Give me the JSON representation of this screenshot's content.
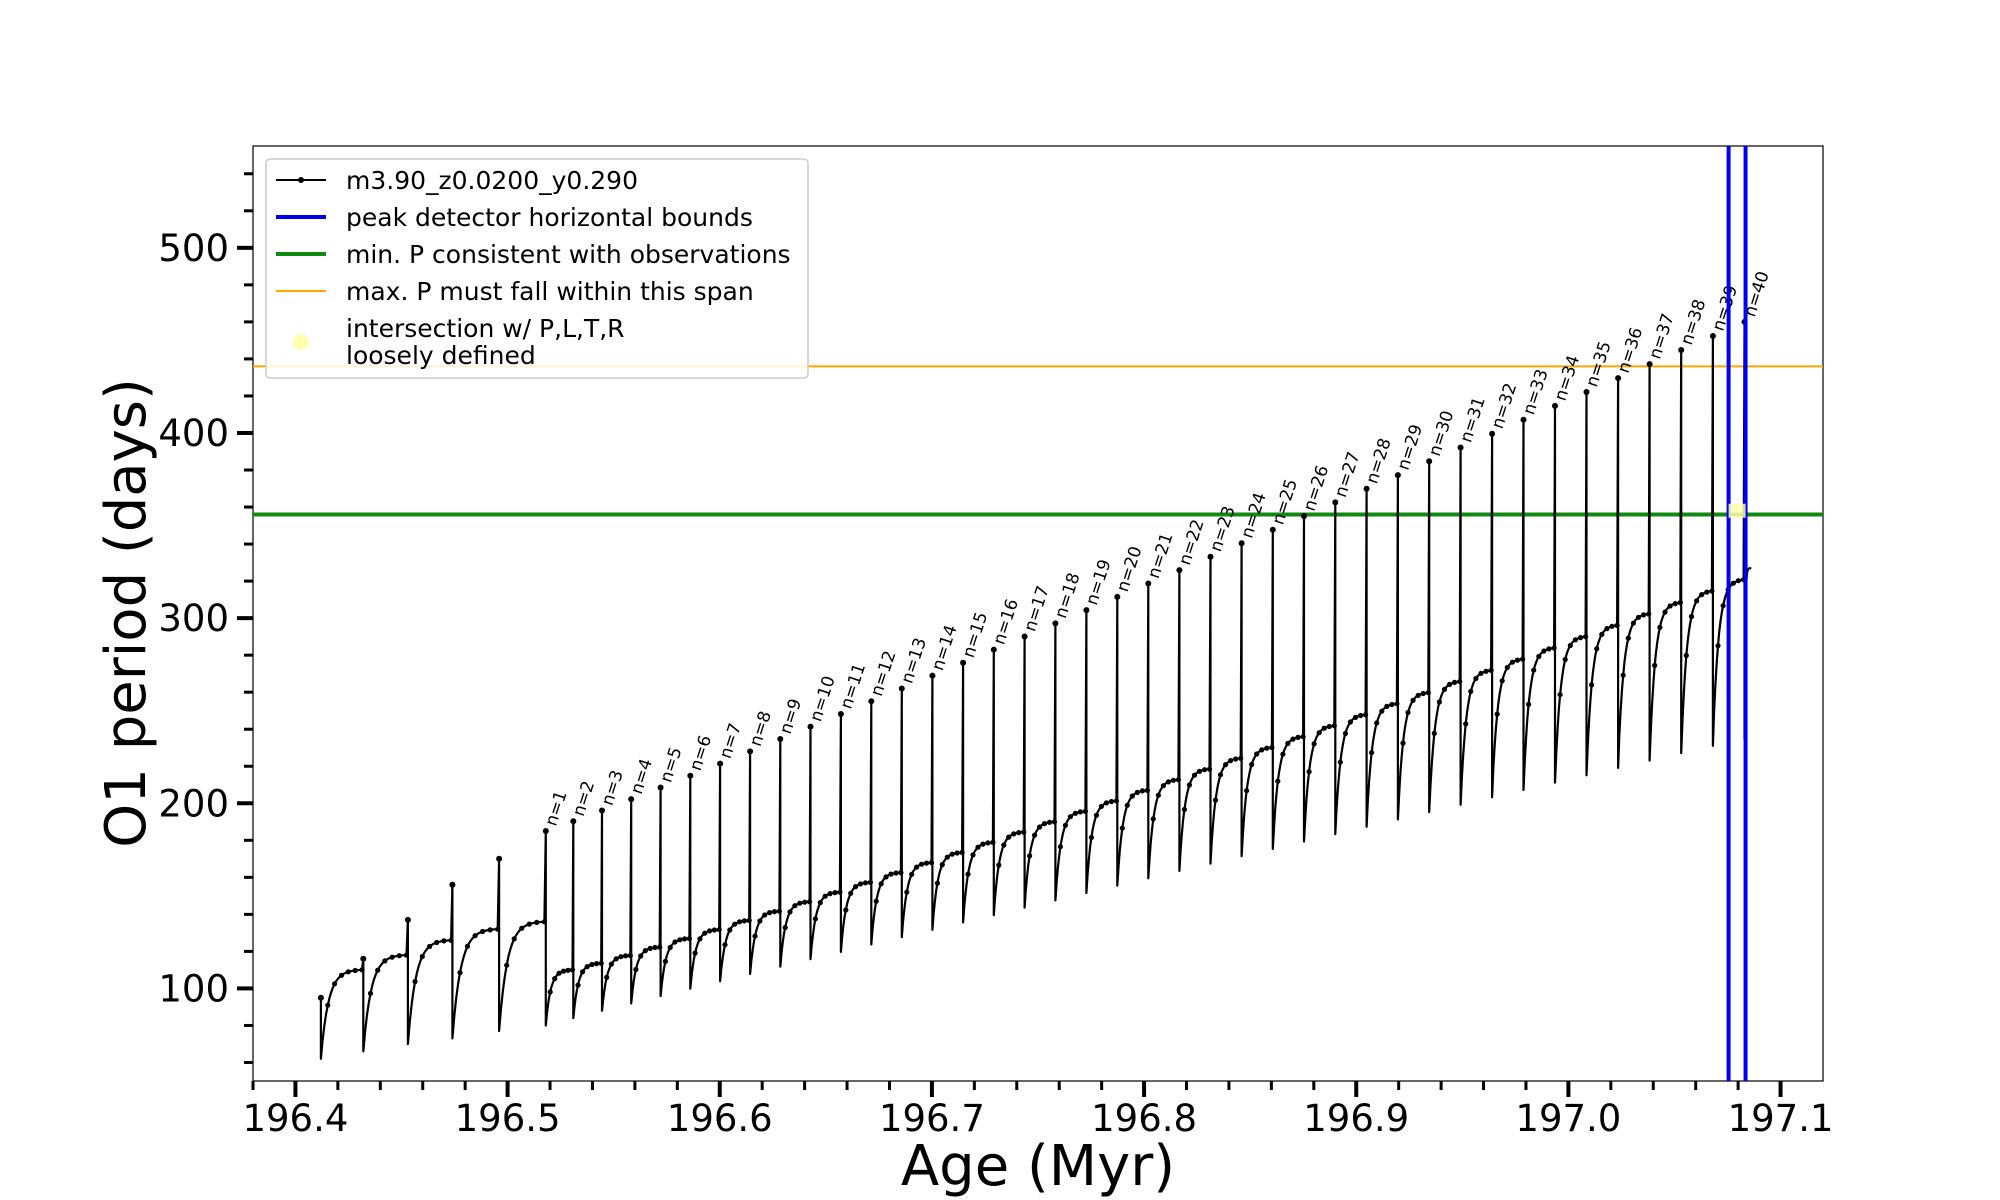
{
  "chart_data": {
    "type": "line",
    "xlabel": "Age (Myr)",
    "ylabel": "O1 period (days)",
    "xlim": [
      196.38,
      197.12
    ],
    "ylim": [
      50,
      555
    ],
    "xticks": [
      "196.4",
      "196.5",
      "196.6",
      "196.7",
      "196.8",
      "196.9",
      "197.0",
      "197.1"
    ],
    "yticks": [
      "100",
      "200",
      "300",
      "400",
      "500"
    ],
    "grid": false,
    "legend_placement": "upper-left",
    "legend": [
      {
        "label": "m3.90_z0.0200_y0.290",
        "kind": "line-marker",
        "color": "#000000"
      },
      {
        "label": "peak detector horizontal bounds",
        "kind": "line",
        "color": "#0000ee"
      },
      {
        "label": "min. P consistent with observations",
        "kind": "line",
        "color": "#118811"
      },
      {
        "label": "max. P must fall within this span",
        "kind": "line",
        "color": "#ffa500"
      },
      {
        "label": "intersection w/ P,L,T,R\nloosely defined",
        "kind": "dot",
        "color": "#ffffb0"
      }
    ],
    "series": [
      {
        "name": "m3.90_z0.0200_y0.290",
        "color": "#000000",
        "pulse_count": 40,
        "pulse_ages_first_last": [
          196.518,
          197.083
        ],
        "pre_pulse_ages": [
          196.412,
          196.432,
          196.453,
          196.474,
          196.496
        ],
        "peak_period_first_last": [
          185,
          460
        ],
        "plateau_period_first_last": [
          110,
          327
        ],
        "min_period_first_last": [
          62,
          235
        ]
      }
    ],
    "peak_labels": [
      "n=1",
      "n=2",
      "n=3",
      "n=4",
      "n=5",
      "n=6",
      "n=7",
      "n=8",
      "n=9",
      "n=10",
      "n=11",
      "n=12",
      "n=13",
      "n=14",
      "n=15",
      "n=16",
      "n=17",
      "n=18",
      "n=19",
      "n=20",
      "n=21",
      "n=22",
      "n=23",
      "n=24",
      "n=25",
      "n=26",
      "n=27",
      "n=28",
      "n=29",
      "n=30",
      "n=31",
      "n=32",
      "n=33",
      "n=34",
      "n=35",
      "n=36",
      "n=37",
      "n=38",
      "n=39",
      "n=40"
    ],
    "hlines": [
      {
        "name": "min. P consistent with observations",
        "y": 356,
        "color": "#118811"
      },
      {
        "name": "max. P must fall within this span",
        "y": 436,
        "color": "#ffa500"
      }
    ],
    "vlines": [
      {
        "name": "peak detector horizontal bounds",
        "x": 197.0755,
        "color": "#0000ee"
      },
      {
        "name": "peak detector horizontal bounds",
        "x": 197.0835,
        "color": "#0000ee"
      }
    ],
    "intersection_point": {
      "x": 197.079,
      "y": 358,
      "color": "#ffffb0"
    }
  }
}
